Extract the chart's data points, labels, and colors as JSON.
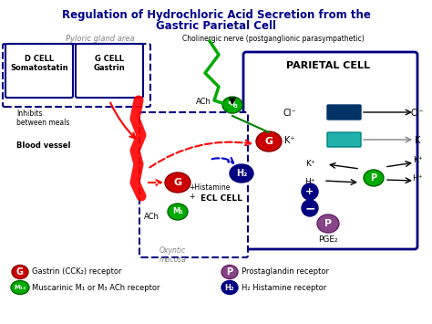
{
  "title_line1": "Regulation of Hydrochloric Acid Secretion from the",
  "title_line2": "Gastric Parietal Cell",
  "title_color": "#00008B",
  "bg_color": "#FFFFFF",
  "pyloric_label": "Pyloric gland area",
  "cholinergic_label": "Cholinergic nerve (postganglionic parasympathetic)",
  "parietal_label": "PARIETAL CELL",
  "d_cell_label": "D CELL\nSomatostatin",
  "g_cell_label": "G CELL\nGastrin",
  "inhibits_label": "Inhibits\nbetween meals",
  "blood_vessel_label": "Blood vessel",
  "ecl_label": "ECL CELL",
  "oxyntic_label": "Oxyntic\nmucosa",
  "pge2_label": "PGE₂",
  "ach_label1": "ACh",
  "ach_label2": "ACh",
  "histamine_label": "+Histamine\n+",
  "legend": [
    {
      "symbol": "G",
      "color": "#CC0000",
      "text": "Gastrin (CCK₂) receptor"
    },
    {
      "symbol": "M₁₃",
      "color": "#00AA00",
      "text": "Muscarinic M₁ or M₃ ACh receptor"
    },
    {
      "symbol": "P",
      "color": "#884488",
      "text": "Prostaglandin receptor"
    },
    {
      "symbol": "H₂",
      "color": "#000080",
      "text": "H₂ Histamine receptor"
    }
  ]
}
